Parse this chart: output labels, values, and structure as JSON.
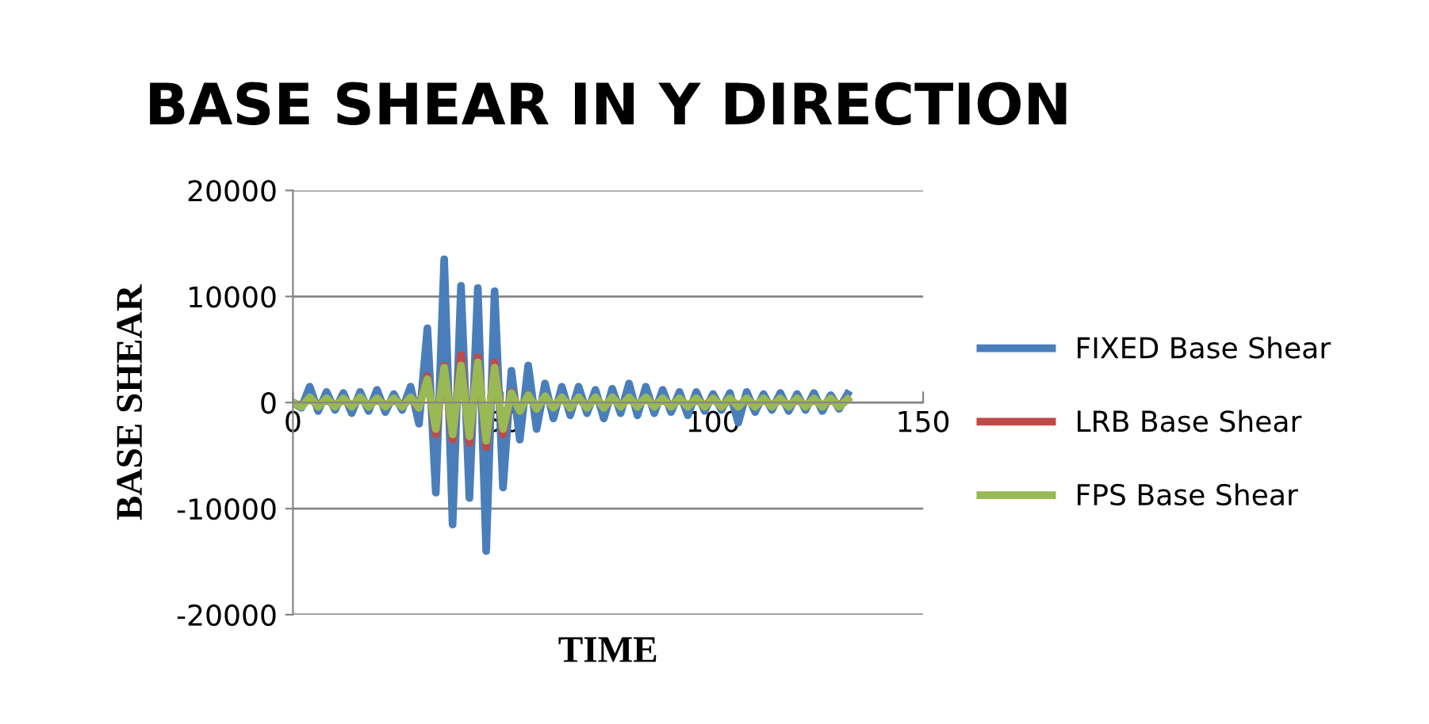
{
  "chart_data": {
    "type": "line",
    "title": "BASE SHEAR IN Y DIRECTION",
    "xlabel": "TIME",
    "ylabel": "BASE SHEAR",
    "x": [
      0,
      2,
      4,
      6,
      8,
      10,
      12,
      14,
      16,
      18,
      20,
      22,
      24,
      26,
      28,
      30,
      32,
      34,
      36,
      38,
      40,
      42,
      44,
      46,
      48,
      50,
      52,
      54,
      56,
      58,
      60,
      62,
      64,
      66,
      68,
      70,
      72,
      74,
      76,
      78,
      80,
      82,
      84,
      86,
      88,
      90,
      92,
      94,
      96,
      98,
      100,
      102,
      104,
      106,
      108,
      110,
      112,
      114,
      116,
      118,
      120,
      122,
      124,
      126,
      128,
      130,
      132
    ],
    "series": [
      {
        "name": "FIXED Base Shear",
        "color": "#4a7ebb",
        "values": [
          0,
          -500,
          1500,
          -800,
          1000,
          -700,
          900,
          -1000,
          1000,
          -800,
          1200,
          -900,
          800,
          -700,
          1500,
          -2000,
          7000,
          -8500,
          13500,
          -11500,
          11000,
          -9000,
          10800,
          -14000,
          10500,
          -8000,
          3000,
          -3500,
          3500,
          -2500,
          1800,
          -1500,
          1500,
          -1200,
          1500,
          -1000,
          1200,
          -1500,
          1300,
          -1000,
          1800,
          -1200,
          1500,
          -1000,
          1200,
          -900,
          1000,
          -1200,
          1000,
          -800,
          800,
          -700,
          900,
          -1900,
          1000,
          -900,
          800,
          -700,
          900,
          -800,
          800,
          -700,
          900,
          -800,
          700,
          -600,
          800
        ]
      },
      {
        "name": "LRB Base Shear",
        "color": "#be4b48",
        "values": [
          0,
          -300,
          400,
          -300,
          300,
          -300,
          300,
          -300,
          400,
          -300,
          300,
          -300,
          300,
          -300,
          400,
          -500,
          2500,
          -3000,
          3500,
          -3500,
          4500,
          -3800,
          4300,
          -4200,
          3800,
          -3000,
          1000,
          -800,
          700,
          -600,
          500,
          -400,
          400,
          -400,
          400,
          -400,
          400,
          -400,
          400,
          -300,
          400,
          -300,
          400,
          -300,
          300,
          -300,
          300,
          -300,
          300,
          -300,
          400,
          -400,
          300,
          -300,
          300,
          -300,
          300,
          -300,
          300,
          -300,
          300,
          -300,
          300,
          -300,
          300,
          -300,
          300
        ]
      },
      {
        "name": "FPS Base Shear",
        "color": "#98b954",
        "values": [
          0,
          -400,
          500,
          -400,
          400,
          -400,
          400,
          -400,
          500,
          -400,
          400,
          -400,
          400,
          -400,
          500,
          -500,
          2200,
          -2500,
          3300,
          -3000,
          3500,
          -3200,
          3800,
          -3600,
          3300,
          -2500,
          900,
          -800,
          700,
          -600,
          600,
          -500,
          500,
          -500,
          500,
          -500,
          500,
          -500,
          500,
          -400,
          500,
          -400,
          500,
          -400,
          400,
          -400,
          400,
          -400,
          400,
          -400,
          400,
          -400,
          400,
          -400,
          400,
          -400,
          400,
          -400,
          400,
          -400,
          400,
          -400,
          400,
          -400,
          400,
          -400,
          300
        ]
      }
    ],
    "xlim": [
      0,
      150
    ],
    "xticks": [
      0,
      50,
      100,
      150
    ],
    "ylim": [
      -20000,
      20000
    ],
    "yticks": [
      -20000,
      -10000,
      0,
      10000,
      20000
    ],
    "grid": "y",
    "legend": "right",
    "marker": "none",
    "line_style": "solid"
  }
}
